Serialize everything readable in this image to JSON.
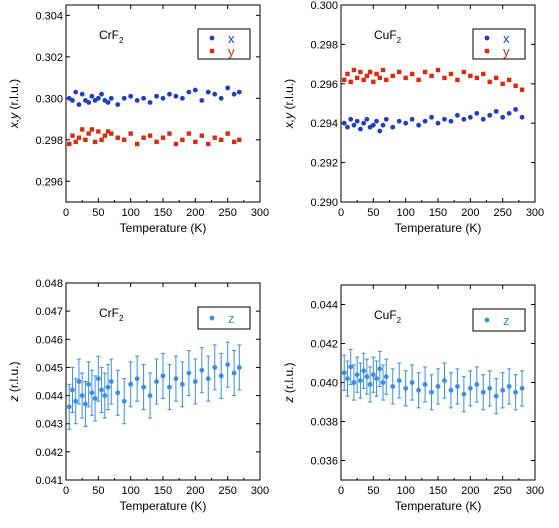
{
  "chart_data": [
    {
      "type": "scatter",
      "title": "CrF2",
      "material": "CrF",
      "subscript": "2",
      "xlabel": "Temperature (K)",
      "ylabel": "x,y (r.l.u.)",
      "xlim": [
        0,
        300
      ],
      "ylim": [
        0.295,
        0.3045
      ],
      "xticks": [
        "0",
        "50",
        "100",
        "150",
        "200",
        "250",
        "300"
      ],
      "yticks": [
        "0.296",
        "0.298",
        "0.300",
        "0.302",
        "0.304"
      ],
      "legend": "top-right",
      "series": [
        {
          "name": "x",
          "color": "#1f3fbf",
          "marker": "circle",
          "x": [
            5,
            10,
            15,
            20,
            25,
            30,
            35,
            40,
            45,
            50,
            55,
            60,
            65,
            70,
            80,
            90,
            100,
            110,
            120,
            130,
            140,
            150,
            160,
            170,
            180,
            190,
            200,
            210,
            220,
            230,
            240,
            250,
            260,
            268
          ],
          "y": [
            0.3,
            0.2999,
            0.3003,
            0.2997,
            0.3002,
            0.2999,
            0.2998,
            0.3001,
            0.2999,
            0.3,
            0.3002,
            0.2999,
            0.2998,
            0.3,
            0.2997,
            0.3,
            0.3001,
            0.2999,
            0.3,
            0.2998,
            0.3001,
            0.3,
            0.3002,
            0.3001,
            0.3,
            0.3003,
            0.3004,
            0.2999,
            0.3003,
            0.3002,
            0.3,
            0.3005,
            0.3002,
            0.3003
          ]
        },
        {
          "name": "y",
          "color": "#e02a10",
          "marker": "square",
          "x": [
            5,
            10,
            15,
            20,
            25,
            30,
            35,
            40,
            45,
            50,
            55,
            60,
            65,
            70,
            80,
            90,
            100,
            110,
            120,
            130,
            140,
            150,
            160,
            170,
            180,
            190,
            200,
            210,
            220,
            230,
            240,
            250,
            260,
            268
          ],
          "y": [
            0.2978,
            0.2982,
            0.2979,
            0.2981,
            0.2985,
            0.298,
            0.2983,
            0.2985,
            0.2979,
            0.2984,
            0.298,
            0.2982,
            0.2984,
            0.2983,
            0.2981,
            0.298,
            0.2983,
            0.2978,
            0.2981,
            0.2982,
            0.2979,
            0.2981,
            0.2983,
            0.2978,
            0.298,
            0.2983,
            0.2979,
            0.2982,
            0.2978,
            0.2981,
            0.298,
            0.2983,
            0.2979,
            0.298
          ]
        }
      ]
    },
    {
      "type": "scatter",
      "title": "CuF2",
      "material": "CuF",
      "subscript": "2",
      "xlabel": "Temperature (K)",
      "ylabel": "x,y (r.l.u.)",
      "xlim": [
        0,
        300
      ],
      "ylim": [
        0.29,
        0.3
      ],
      "xticks": [
        "0",
        "50",
        "100",
        "150",
        "200",
        "250",
        "300"
      ],
      "yticks": [
        "0.290",
        "0.292",
        "0.294",
        "0.296",
        "0.298",
        "0.300"
      ],
      "legend": "top-right",
      "series": [
        {
          "name": "x",
          "color": "#1f3fbf",
          "marker": "circle",
          "x": [
            5,
            10,
            15,
            20,
            25,
            30,
            35,
            40,
            45,
            50,
            55,
            60,
            65,
            70,
            80,
            90,
            100,
            110,
            120,
            130,
            140,
            150,
            160,
            170,
            180,
            190,
            200,
            210,
            220,
            230,
            240,
            250,
            260,
            270,
            280
          ],
          "y": [
            0.294,
            0.2938,
            0.2942,
            0.2939,
            0.2941,
            0.2937,
            0.294,
            0.2942,
            0.2938,
            0.2939,
            0.2941,
            0.2936,
            0.2939,
            0.2942,
            0.2938,
            0.2941,
            0.294,
            0.2942,
            0.2939,
            0.2941,
            0.2943,
            0.294,
            0.2942,
            0.2941,
            0.2944,
            0.2942,
            0.2943,
            0.2945,
            0.2942,
            0.2944,
            0.2946,
            0.2943,
            0.2945,
            0.2947,
            0.2943
          ]
        },
        {
          "name": "y",
          "color": "#e02a10",
          "marker": "square",
          "x": [
            5,
            10,
            15,
            20,
            25,
            30,
            35,
            40,
            45,
            50,
            55,
            60,
            65,
            70,
            80,
            90,
            100,
            110,
            120,
            130,
            140,
            150,
            160,
            170,
            180,
            190,
            200,
            210,
            220,
            230,
            240,
            250,
            260,
            270,
            280
          ],
          "y": [
            0.2962,
            0.2965,
            0.2961,
            0.2967,
            0.2963,
            0.2966,
            0.2962,
            0.2964,
            0.2966,
            0.2961,
            0.2965,
            0.2963,
            0.2967,
            0.2962,
            0.2964,
            0.2966,
            0.2963,
            0.2965,
            0.2962,
            0.2966,
            0.2964,
            0.2967,
            0.2963,
            0.2965,
            0.2962,
            0.2966,
            0.2964,
            0.2963,
            0.2965,
            0.2961,
            0.2963,
            0.296,
            0.2962,
            0.2959,
            0.2957
          ]
        }
      ]
    },
    {
      "type": "scatter",
      "title": "CrF2",
      "material": "CrF",
      "subscript": "2",
      "xlabel": "Temperature (K)",
      "ylabel": "z (r.l.u.)",
      "xlim": [
        0,
        300
      ],
      "ylim": [
        0.041,
        0.048
      ],
      "xticks": [
        "0",
        "50",
        "100",
        "150",
        "200",
        "250",
        "300"
      ],
      "yticks": [
        "0.041",
        "0.042",
        "0.043",
        "0.044",
        "0.045",
        "0.046",
        "0.047",
        "0.048"
      ],
      "legend": "top-right",
      "series": [
        {
          "name": "z",
          "color": "#3a8ee8",
          "marker": "circle",
          "error": 0.0008,
          "x": [
            5,
            10,
            15,
            20,
            25,
            30,
            35,
            40,
            45,
            50,
            55,
            60,
            65,
            70,
            80,
            90,
            100,
            110,
            120,
            130,
            140,
            150,
            160,
            170,
            180,
            190,
            200,
            210,
            220,
            230,
            240,
            250,
            260,
            268
          ],
          "y": [
            0.0436,
            0.0442,
            0.0438,
            0.0445,
            0.044,
            0.0437,
            0.0444,
            0.0441,
            0.0439,
            0.0446,
            0.0442,
            0.044,
            0.0443,
            0.0445,
            0.0441,
            0.0438,
            0.0444,
            0.0446,
            0.0443,
            0.044,
            0.0445,
            0.0447,
            0.0443,
            0.0446,
            0.0444,
            0.0448,
            0.0445,
            0.0449,
            0.0446,
            0.045,
            0.0447,
            0.0451,
            0.0448,
            0.045
          ]
        }
      ]
    },
    {
      "type": "scatter",
      "title": "CuF2",
      "material": "CuF",
      "subscript": "2",
      "xlabel": "Temperature (K)",
      "ylabel": "z (r.l.u.)",
      "xlim": [
        0,
        300
      ],
      "ylim": [
        0.035,
        0.045
      ],
      "xticks": [
        "0",
        "50",
        "100",
        "150",
        "200",
        "250",
        "300"
      ],
      "yticks": [
        "0.036",
        "0.038",
        "0.040",
        "0.042",
        "0.044"
      ],
      "legend": "top-right",
      "series": [
        {
          "name": "z",
          "color": "#3a8ee8",
          "marker": "circle",
          "error": 0.0009,
          "x": [
            5,
            10,
            15,
            20,
            25,
            30,
            35,
            40,
            45,
            50,
            55,
            60,
            65,
            70,
            80,
            90,
            100,
            110,
            120,
            130,
            140,
            150,
            160,
            170,
            180,
            190,
            200,
            210,
            220,
            230,
            240,
            250,
            260,
            270,
            280
          ],
          "y": [
            0.0405,
            0.0402,
            0.0408,
            0.04,
            0.0404,
            0.0401,
            0.0406,
            0.0403,
            0.0399,
            0.0404,
            0.0402,
            0.0407,
            0.04,
            0.0403,
            0.0398,
            0.0401,
            0.0397,
            0.04,
            0.0396,
            0.0399,
            0.0395,
            0.0398,
            0.0401,
            0.0396,
            0.0398,
            0.0394,
            0.0397,
            0.0399,
            0.0395,
            0.0397,
            0.0393,
            0.0396,
            0.0398,
            0.0395,
            0.0397
          ]
        }
      ]
    }
  ]
}
